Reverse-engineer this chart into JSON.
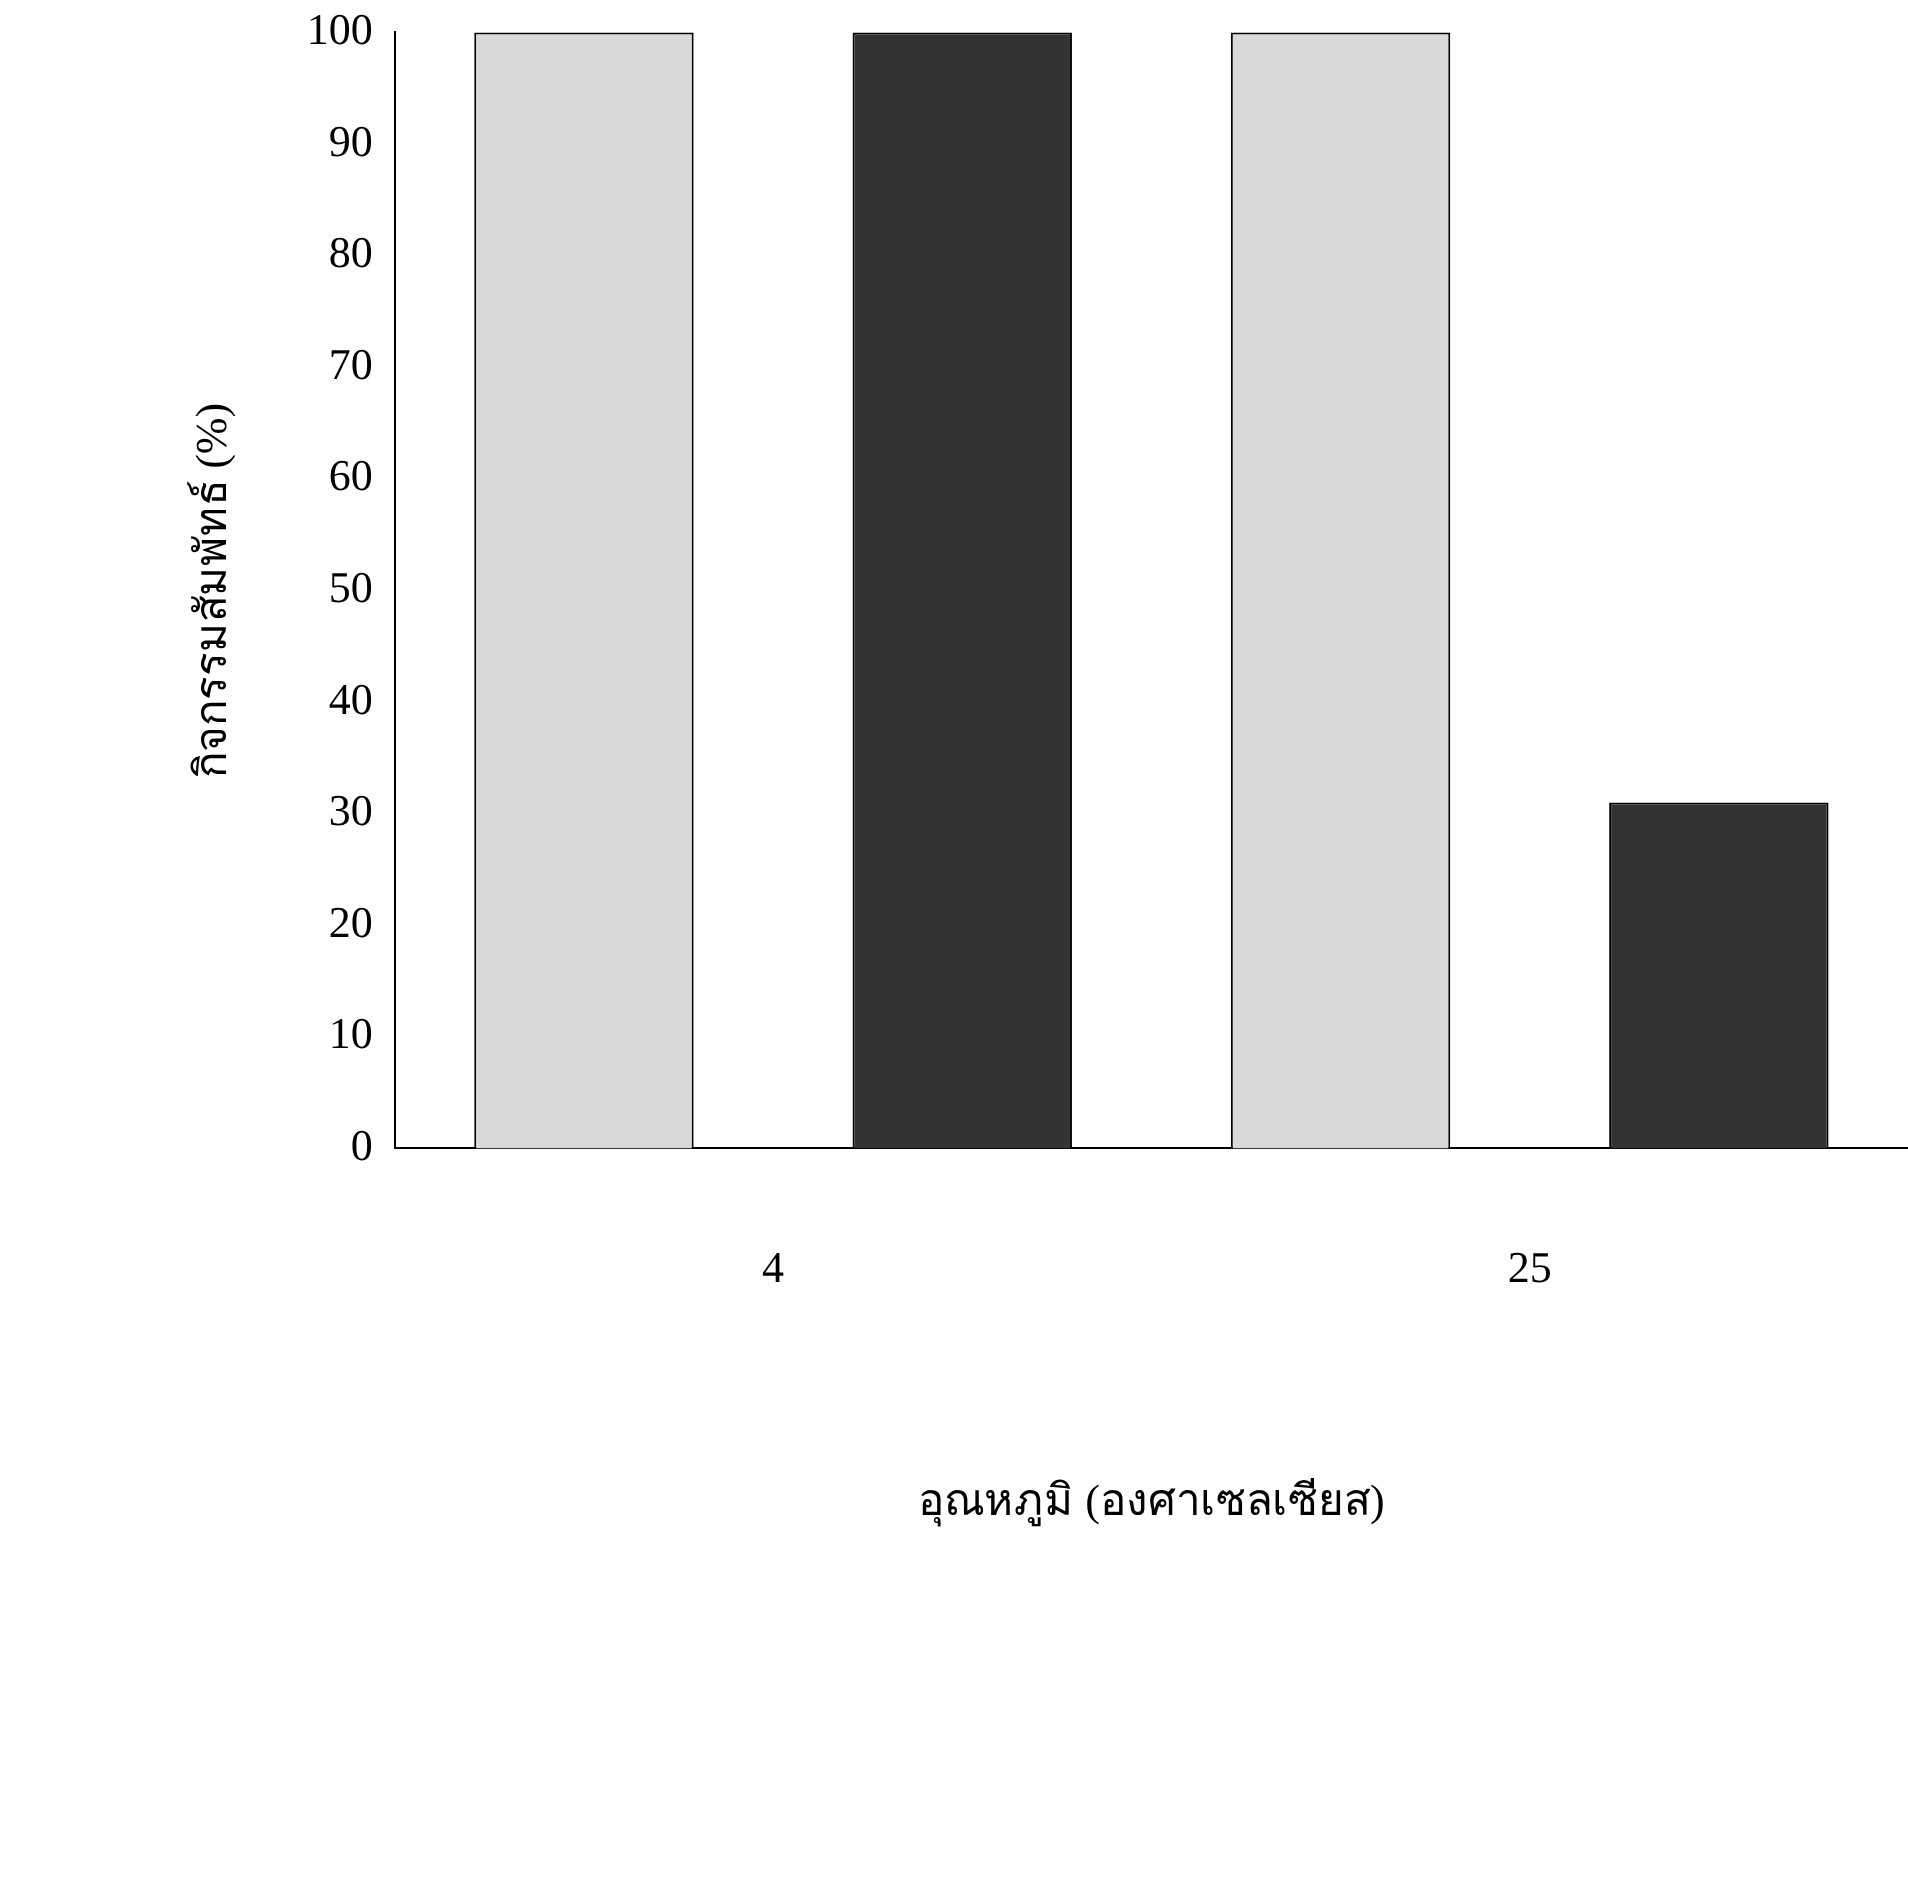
{
  "chart_data": {
    "type": "bar",
    "xlabel": "อุณหภูมิ (องศาเซลเซียส)",
    "ylabel": "กิจกรรมสัมพัทธ์ (%)",
    "categories": [
      "4",
      "25"
    ],
    "series": [
      {
        "color": "#d9d9d9",
        "values": [
          100,
          100
        ]
      },
      {
        "color": "#333333",
        "values": [
          100,
          31
        ]
      }
    ],
    "ylim": [
      0,
      100
    ],
    "yticks": [
      0,
      10,
      20,
      30,
      40,
      50,
      60,
      70,
      80,
      90,
      100
    ]
  }
}
